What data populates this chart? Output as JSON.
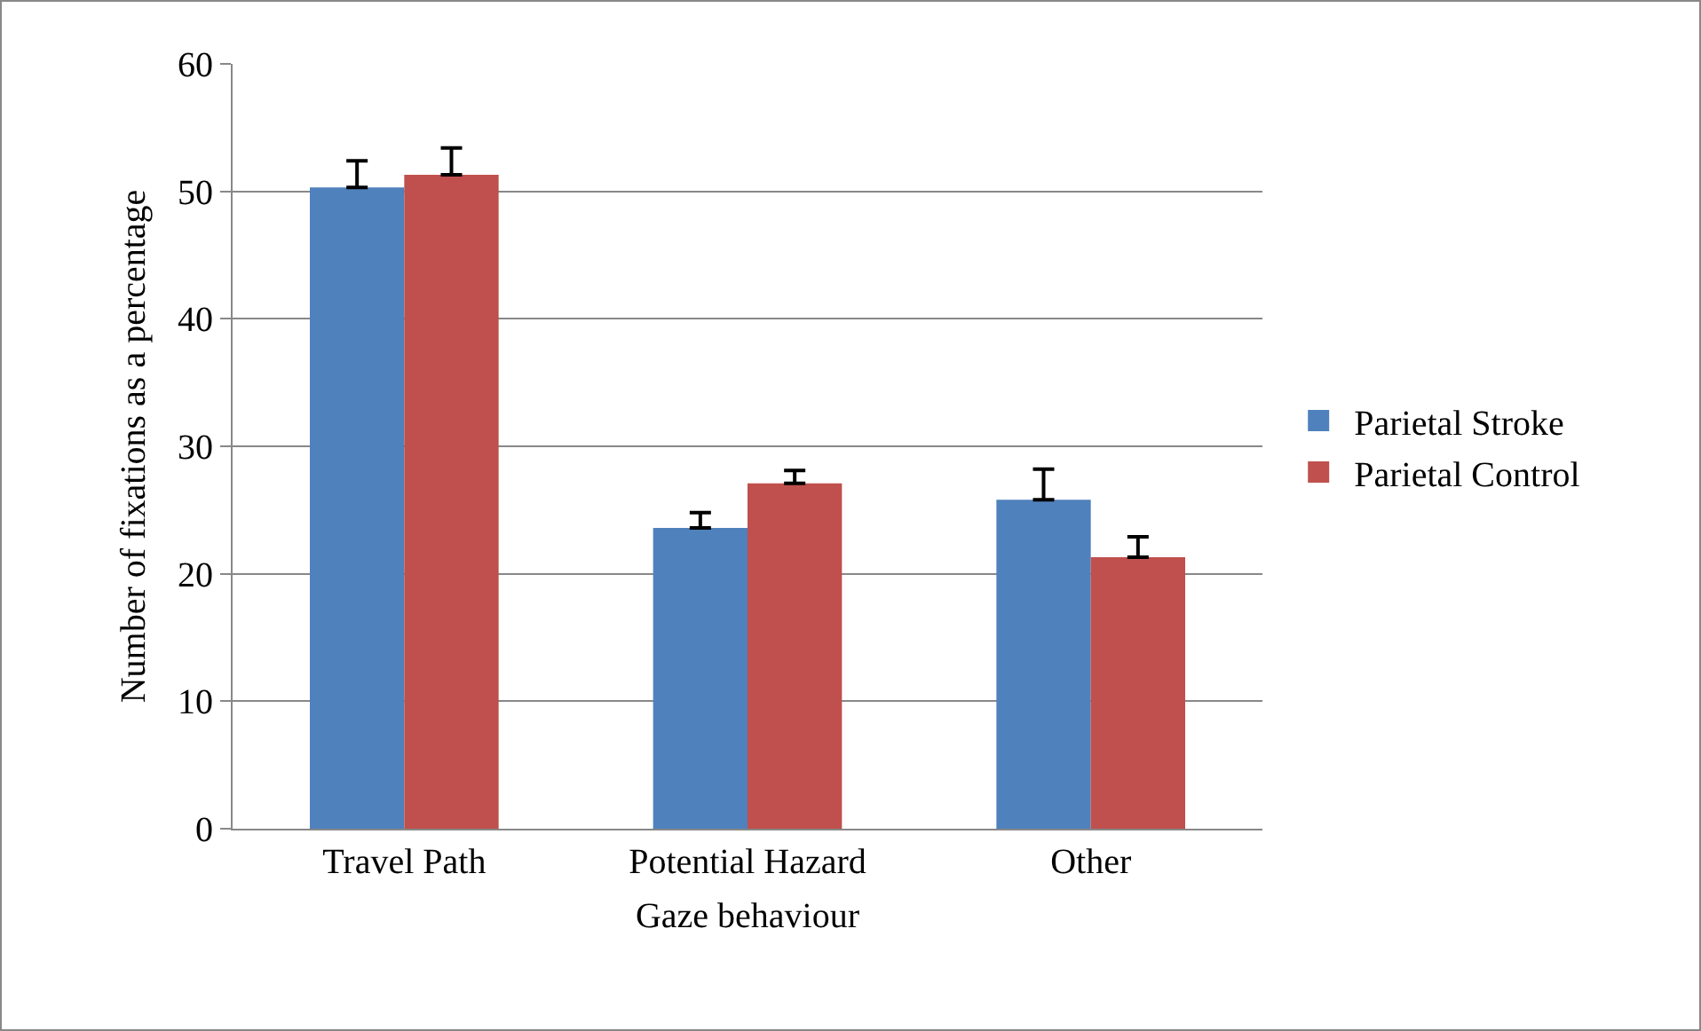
{
  "chart_data": {
    "type": "bar",
    "xlabel": "Gaze behaviour",
    "ylabel": "Number of fixations as a percentage",
    "categories": [
      "Travel Path",
      "Potential Hazard",
      "Other"
    ],
    "series": [
      {
        "name": "Parietal Stroke",
        "color": "#4f81bd",
        "values": [
          50.3,
          23.6,
          25.8
        ],
        "errors": [
          [
            50.3,
            52.4
          ],
          [
            23.6,
            24.8
          ],
          [
            25.8,
            28.2
          ]
        ]
      },
      {
        "name": "Parietal Control",
        "color": "#c0504d",
        "values": [
          51.3,
          27.1,
          21.3
        ],
        "errors": [
          [
            51.3,
            53.4
          ],
          [
            27.1,
            28.1
          ],
          [
            21.3,
            22.9
          ]
        ]
      }
    ],
    "ylim": [
      0,
      60
    ],
    "yticks": [
      0,
      10,
      20,
      30,
      40,
      50,
      60
    ],
    "grid": "y",
    "legend": "right"
  }
}
